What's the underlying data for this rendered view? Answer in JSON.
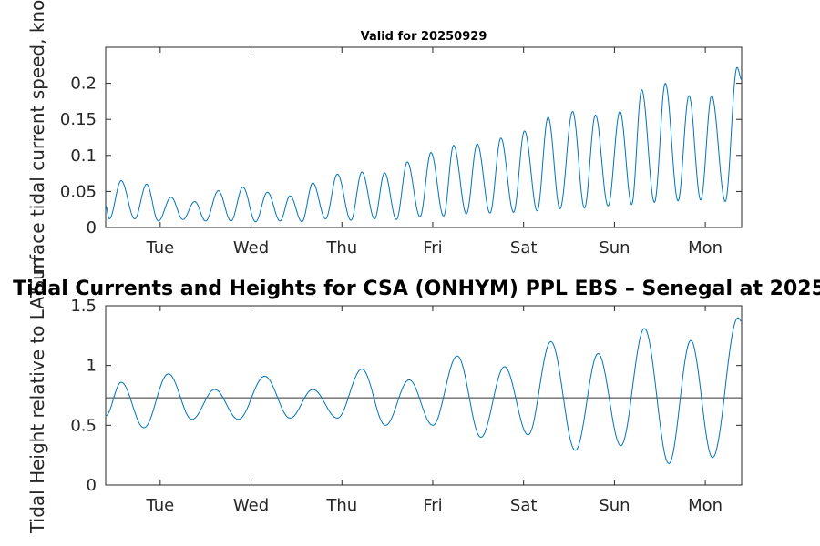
{
  "chart_data": [
    {
      "type": "line",
      "title": "Valid for 20250929",
      "xlabel": "",
      "ylabel": "Surface tidal current speed, knots",
      "xticks": [
        "Tue",
        "Wed",
        "Thu",
        "Fri",
        "Sat",
        "Sun",
        "Mon"
      ],
      "xlim": [
        0,
        7
      ],
      "xtick_positions": [
        0.6,
        1.6,
        2.6,
        3.6,
        4.6,
        5.6,
        6.6
      ],
      "ylim": [
        0,
        0.25
      ],
      "yticks": [
        0,
        0.05,
        0.1,
        0.15,
        0.2
      ],
      "ytick_labels": [
        "0",
        "0.05",
        "0.1",
        "0.15",
        "0.2"
      ],
      "series": [
        {
          "name": "speed",
          "color": "#0072BD",
          "peaks_x": [
            0.17,
            0.45,
            0.72,
            0.98,
            1.24,
            1.51,
            1.78,
            2.03,
            2.28,
            2.55,
            2.82,
            3.07,
            3.32,
            3.58,
            3.83,
            4.09,
            4.35,
            4.61,
            4.87,
            5.14,
            5.39,
            5.66,
            5.9,
            6.16,
            6.42,
            6.67,
            6.95
          ],
          "peaks_y": [
            0.065,
            0.06,
            0.042,
            0.036,
            0.051,
            0.056,
            0.049,
            0.044,
            0.062,
            0.074,
            0.077,
            0.076,
            0.091,
            0.104,
            0.114,
            0.116,
            0.124,
            0.134,
            0.153,
            0.161,
            0.156,
            0.161,
            0.191,
            0.2,
            0.183,
            0.183,
            0.222
          ],
          "troughs_x": [
            0.04,
            0.32,
            0.58,
            0.85,
            1.1,
            1.38,
            1.65,
            1.92,
            2.16,
            2.42,
            2.7,
            2.96,
            3.2,
            3.46,
            3.72,
            3.97,
            4.23,
            4.49,
            4.75,
            5.0,
            5.27,
            5.53,
            5.79,
            6.04,
            6.3,
            6.55,
            6.82
          ],
          "troughs_y": [
            0.012,
            0.012,
            0.009,
            0.011,
            0.009,
            0.009,
            0.008,
            0.009,
            0.008,
            0.012,
            0.01,
            0.012,
            0.011,
            0.015,
            0.016,
            0.019,
            0.02,
            0.021,
            0.023,
            0.026,
            0.027,
            0.03,
            0.032,
            0.035,
            0.037,
            0.038,
            0.036
          ]
        }
      ]
    },
    {
      "type": "line",
      "title": "Tidal Currents and Heights for CSA (ONHYM) PPL EBS  – Senegal at 2025",
      "xlabel": "",
      "ylabel": "Tidal Height relative to LAT, m",
      "xticks": [
        "Tue",
        "Wed",
        "Thu",
        "Fri",
        "Sat",
        "Sun",
        "Mon"
      ],
      "xlim": [
        0,
        7
      ],
      "xtick_positions": [
        0.6,
        1.6,
        2.6,
        3.6,
        4.6,
        5.6,
        6.6
      ],
      "ylim": [
        0,
        1.5
      ],
      "yticks": [
        0,
        0.5,
        1,
        1.5
      ],
      "ytick_labels": [
        "0",
        "0.5",
        "1",
        "1.5"
      ],
      "reference_line": {
        "y": 0.73,
        "color": "#333333"
      },
      "series": [
        {
          "name": "height",
          "color": "#0072BD",
          "extrema_x": [
            0.0,
            0.17,
            0.42,
            0.69,
            0.95,
            1.2,
            1.46,
            1.75,
            2.03,
            2.28,
            2.55,
            2.82,
            3.08,
            3.34,
            3.6,
            3.87,
            4.13,
            4.39,
            4.65,
            4.9,
            5.17,
            5.42,
            5.67,
            5.93,
            6.2,
            6.44,
            6.68,
            6.96,
            7.0
          ],
          "extrema_y": [
            0.58,
            0.86,
            0.48,
            0.93,
            0.55,
            0.8,
            0.55,
            0.91,
            0.56,
            0.8,
            0.56,
            0.97,
            0.5,
            0.88,
            0.5,
            1.08,
            0.4,
            0.99,
            0.42,
            1.2,
            0.29,
            1.1,
            0.33,
            1.31,
            0.18,
            1.21,
            0.23,
            1.4,
            1.37
          ]
        }
      ]
    }
  ]
}
